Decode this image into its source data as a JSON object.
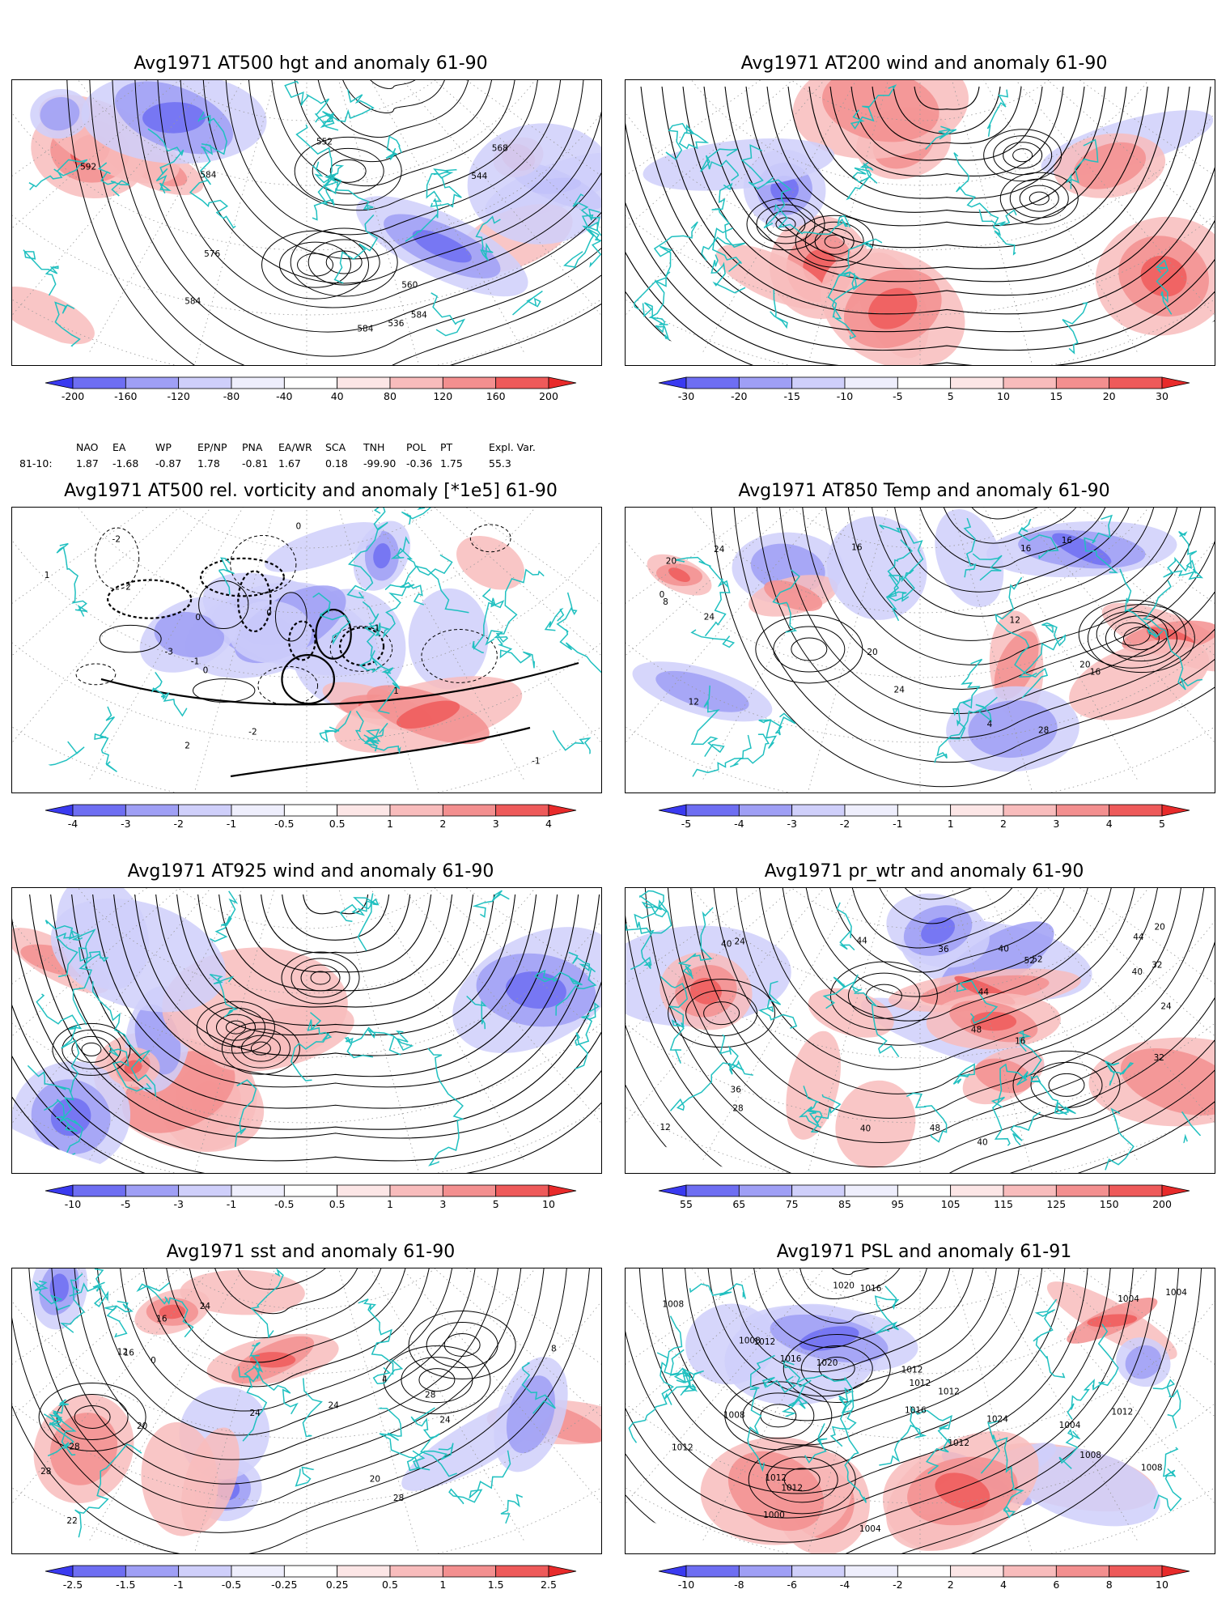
{
  "colors": {
    "coast": "#20c0c0",
    "contour": "#000000",
    "neg": [
      "#3a3af0",
      "#6e6ef2",
      "#9f9ff5",
      "#cfcffa",
      "#eeeefc"
    ],
    "pos": [
      "#fce6e6",
      "#f8bcbc",
      "#f38f8f",
      "#ee5a5a",
      "#e82a2a"
    ]
  },
  "panels": [
    {
      "id": "hgt500",
      "title": "Avg1971 AT500 hgt and anomaly 61-90",
      "field": "contour",
      "contour_labels": [
        "536",
        "544",
        "552",
        "560",
        "568",
        "576",
        "584",
        "584",
        "592",
        "584",
        "584"
      ],
      "cbar_labels": [
        "-200",
        "-160",
        "-120",
        "-80",
        "-40",
        "40",
        "80",
        "120",
        "160",
        "200"
      ]
    },
    {
      "id": "wind200",
      "title": "Avg1971 AT200 wind and anomaly 61-90",
      "field": "stream",
      "contour_labels": [],
      "cbar_labels": [
        "-30",
        "-20",
        "-15",
        "-10",
        "-5",
        "5",
        "10",
        "15",
        "20",
        "30"
      ]
    },
    {
      "id": "vort500",
      "title": "Avg1971 AT500 rel. vorticity and anomaly [*1e5] 61-90",
      "field": "vort",
      "contour_labels": [
        "0",
        "-2",
        "2",
        "-1",
        "1",
        "-3",
        "0",
        "-1",
        "2",
        "-2",
        "1",
        "0",
        "-1",
        "0"
      ],
      "cbar_labels": [
        "-4",
        "-3",
        "-2",
        "-1",
        "-0.5",
        "0.5",
        "1",
        "2",
        "3",
        "4"
      ]
    },
    {
      "id": "temp850",
      "title": "Avg1971 AT850 Temp and anomaly 61-90",
      "field": "contour",
      "contour_labels": [
        "20",
        "4",
        "0",
        "8",
        "12",
        "12",
        "16",
        "16",
        "20",
        "24",
        "28",
        "24",
        "20",
        "16",
        "16",
        "24"
      ],
      "cbar_labels": [
        "-5",
        "-4",
        "-3",
        "-2",
        "-1",
        "1",
        "2",
        "3",
        "4",
        "5"
      ]
    },
    {
      "id": "wind925",
      "title": "Avg1971 AT925 wind and anomaly 61-90",
      "field": "stream",
      "contour_labels": [],
      "cbar_labels": [
        "-10",
        "-5",
        "-3",
        "-1",
        "-0.5",
        "0.5",
        "1",
        "3",
        "5",
        "10"
      ]
    },
    {
      "id": "prwtr",
      "title": "Avg1971 pr_wtr and anomaly 61-90",
      "field": "contour",
      "contour_labels": [
        "52",
        "40",
        "36",
        "24",
        "16",
        "12",
        "20",
        "28",
        "40",
        "44",
        "48",
        "44",
        "36",
        "32",
        "40",
        "24",
        "32",
        "44",
        "40",
        "48",
        "52",
        "40"
      ],
      "cbar_labels": [
        "55",
        "65",
        "75",
        "85",
        "95",
        "105",
        "115",
        "125",
        "150",
        "200"
      ]
    },
    {
      "id": "sst",
      "title": "Avg1971 sst and anomaly 61-90",
      "field": "contour",
      "contour_labels": [
        "24",
        "28",
        "28",
        "22",
        "16",
        "20",
        "12",
        "8",
        "4",
        "0",
        "16",
        "20",
        "24",
        "28",
        "24",
        "24",
        "28"
      ],
      "cbar_labels": [
        "-2.5",
        "-1.5",
        "-1",
        "-0.5",
        "-0.25",
        "0.25",
        "0.5",
        "1",
        "1.5",
        "2.5"
      ]
    },
    {
      "id": "psl",
      "title": "Avg1971 PSL and anomaly 61-91",
      "field": "contour",
      "contour_labels": [
        "1016",
        "1008",
        "1004",
        "1004",
        "1008",
        "1008",
        "1004",
        "1012",
        "1012",
        "1020",
        "1024",
        "1016",
        "1016",
        "1012",
        "1000",
        "1004",
        "1008",
        "1012",
        "1020",
        "1012",
        "1008",
        "1012",
        "1012",
        "1012",
        "1012"
      ],
      "cbar_labels": [
        "-10",
        "-8",
        "-6",
        "-4",
        "-2",
        "2",
        "4",
        "6",
        "8",
        "10"
      ]
    }
  ],
  "indices": {
    "row_label": "81-10:",
    "columns": [
      {
        "name": "NAO",
        "value": "1.87"
      },
      {
        "name": "EA",
        "value": "-1.68"
      },
      {
        "name": "WP",
        "value": "-0.87"
      },
      {
        "name": "EP/NP",
        "value": "1.78"
      },
      {
        "name": "PNA",
        "value": "-0.81"
      },
      {
        "name": "EA/WR",
        "value": "1.67"
      },
      {
        "name": "SCA",
        "value": "0.18"
      },
      {
        "name": "TNH",
        "value": "-99.90"
      },
      {
        "name": "POL",
        "value": "-0.36"
      },
      {
        "name": "PT",
        "value": "1.75"
      },
      {
        "name": "Expl. Var.",
        "value": "55.3"
      }
    ]
  }
}
